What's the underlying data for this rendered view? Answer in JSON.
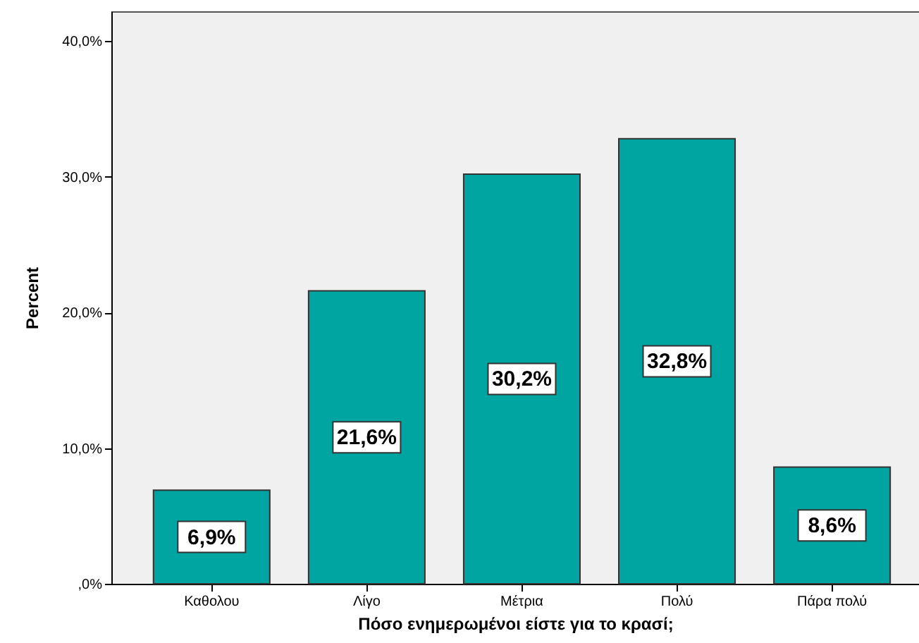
{
  "chart_data": {
    "type": "bar",
    "xlabel": "Πόσο ενημερωμένοι είστε για το κρασί;",
    "ylabel": "Percent",
    "categories": [
      "Καθολου",
      "Λίγο",
      "Μέτρια",
      "Πολύ",
      "Πάρα πολύ"
    ],
    "values": [
      6.9,
      21.6,
      30.2,
      32.8,
      8.6
    ],
    "value_labels": [
      "6,9%",
      "21,6%",
      "30,2%",
      "32,8%",
      "8,6%"
    ],
    "color": "#00a5a2",
    "ylim": [
      0,
      42.2
    ],
    "yticks": [
      {
        "value": 0,
        "label": ",0%"
      },
      {
        "value": 10,
        "label": "10,0%"
      },
      {
        "value": 20,
        "label": "20,0%"
      },
      {
        "value": 30,
        "label": "30,0%"
      },
      {
        "value": 40,
        "label": "40,0%"
      }
    ],
    "tick_labels": true
  }
}
